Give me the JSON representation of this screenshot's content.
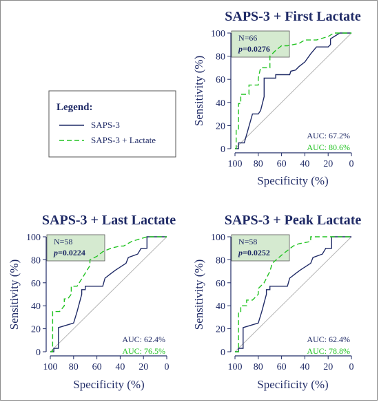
{
  "colors": {
    "navy": "#1f2a66",
    "green": "#22c322",
    "stat_box_fill": "#d5ead0",
    "diagonal": "#b5b5b5"
  },
  "legend": {
    "title": "Legend:",
    "items": [
      {
        "label": "SAPS-3",
        "style": "solid",
        "color": "#1f2a66"
      },
      {
        "label": "SAPS-3 + Lactate",
        "style": "dashed",
        "color": "#22c322"
      }
    ]
  },
  "chart_data": [
    {
      "type": "line",
      "title": "SAPS-3 + First Lactate",
      "xlabel": "Specificity (%)",
      "ylabel": "Sensitivity (%)",
      "xlim": [
        100,
        0
      ],
      "ylim": [
        0,
        100
      ],
      "x_ticks": [
        "100",
        "80",
        "60",
        "40",
        "20",
        "0"
      ],
      "y_ticks": [
        "0",
        "20",
        "40",
        "60",
        "80",
        "100"
      ],
      "n_label": "N=66",
      "p_prefix": "p",
      "p_value": "=0.0276",
      "series": [
        {
          "name": "SAPS-3",
          "auc": "AUC: 67.2%",
          "color": "#1f2a66",
          "dash": "solid",
          "x": [
            100,
            97,
            97,
            92,
            85,
            80,
            78,
            75,
            75,
            65,
            65,
            53,
            52,
            48,
            45,
            40,
            35,
            30,
            20,
            18,
            18,
            10,
            0
          ],
          "y": [
            0,
            0,
            5,
            5,
            30,
            30,
            33,
            45,
            61,
            61,
            64,
            64,
            67,
            68,
            71,
            75,
            82,
            88,
            88,
            90,
            95,
            100,
            100
          ]
        },
        {
          "name": "SAPS-3 + Lactate",
          "auc": "AUC: 80.6%",
          "color": "#22c322",
          "dash": "dashed",
          "x": [
            100,
            99,
            99,
            97,
            97,
            95,
            95,
            88,
            88,
            80,
            80,
            78,
            75,
            70,
            70,
            65,
            60,
            55,
            45,
            40,
            30,
            20,
            15,
            0
          ],
          "y": [
            0,
            0,
            17,
            17,
            39,
            39,
            47,
            47,
            55,
            55,
            61,
            70,
            70,
            70,
            80,
            85,
            89,
            89,
            91,
            94,
            94,
            97,
            100,
            100
          ]
        }
      ]
    },
    {
      "type": "line",
      "title": "SAPS-3 + Last Lactate",
      "xlabel": "Specificity (%)",
      "ylabel": "Sensitivity (%)",
      "xlim": [
        100,
        0
      ],
      "ylim": [
        0,
        100
      ],
      "x_ticks": [
        "100",
        "80",
        "60",
        "40",
        "20",
        "0"
      ],
      "y_ticks": [
        "0",
        "20",
        "40",
        "60",
        "80",
        "100"
      ],
      "n_label": "N=58",
      "p_prefix": "p",
      "p_value": "=0.0224",
      "series": [
        {
          "name": "SAPS-3",
          "auc": "AUC: 62.4%",
          "color": "#1f2a66",
          "dash": "solid",
          "x": [
            100,
            97,
            97,
            93,
            93,
            80,
            77,
            73,
            73,
            70,
            70,
            55,
            53,
            48,
            44,
            35,
            33,
            25,
            22,
            17,
            17,
            0
          ],
          "y": [
            0,
            0,
            3,
            3,
            21,
            25,
            35,
            50,
            54,
            54,
            57,
            57,
            64,
            68,
            71,
            77,
            82,
            85,
            90,
            90,
            100,
            100
          ]
        },
        {
          "name": "SAPS-3 + Lactate",
          "auc": "AUC: 76.5%",
          "color": "#22c322",
          "dash": "dashed",
          "x": [
            100,
            98,
            98,
            92,
            88,
            88,
            85,
            82,
            82,
            77,
            77,
            72,
            66,
            66,
            60,
            55,
            48,
            40,
            37,
            30,
            17,
            0
          ],
          "y": [
            0,
            0,
            35,
            35,
            40,
            46,
            46,
            50,
            57,
            57,
            57,
            65,
            75,
            80,
            83,
            87,
            90,
            92,
            92,
            96,
            100,
            100
          ]
        }
      ]
    },
    {
      "type": "line",
      "title": "SAPS-3 + Peak Lactate",
      "xlabel": "Specificity (%)",
      "ylabel": "Sensitivity (%)",
      "xlim": [
        100,
        0
      ],
      "ylim": [
        0,
        100
      ],
      "x_ticks": [
        "100",
        "80",
        "60",
        "40",
        "20",
        "0"
      ],
      "y_ticks": [
        "0",
        "20",
        "40",
        "60",
        "80",
        "100"
      ],
      "n_label": "N=58",
      "p_prefix": "p",
      "p_value": "=0.0252",
      "series": [
        {
          "name": "SAPS-3",
          "auc": "AUC: 62.4%",
          "color": "#1f2a66",
          "dash": "solid",
          "x": [
            100,
            97,
            97,
            93,
            93,
            80,
            77,
            73,
            73,
            70,
            70,
            55,
            53,
            48,
            44,
            35,
            33,
            25,
            22,
            17,
            17,
            0
          ],
          "y": [
            0,
            0,
            3,
            3,
            21,
            25,
            35,
            50,
            54,
            54,
            57,
            57,
            64,
            68,
            71,
            77,
            82,
            85,
            90,
            90,
            100,
            100
          ]
        },
        {
          "name": "SAPS-3 + Lactate",
          "auc": "AUC: 78.8%",
          "color": "#22c322",
          "dash": "dashed",
          "x": [
            100,
            97,
            97,
            95,
            95,
            90,
            90,
            85,
            80,
            80,
            75,
            70,
            68,
            60,
            55,
            50,
            45,
            40,
            35,
            35,
            0
          ],
          "y": [
            0,
            0,
            35,
            35,
            40,
            40,
            45,
            45,
            50,
            55,
            60,
            70,
            77,
            84,
            88,
            92,
            94,
            95,
            96,
            100,
            100
          ]
        }
      ]
    }
  ]
}
